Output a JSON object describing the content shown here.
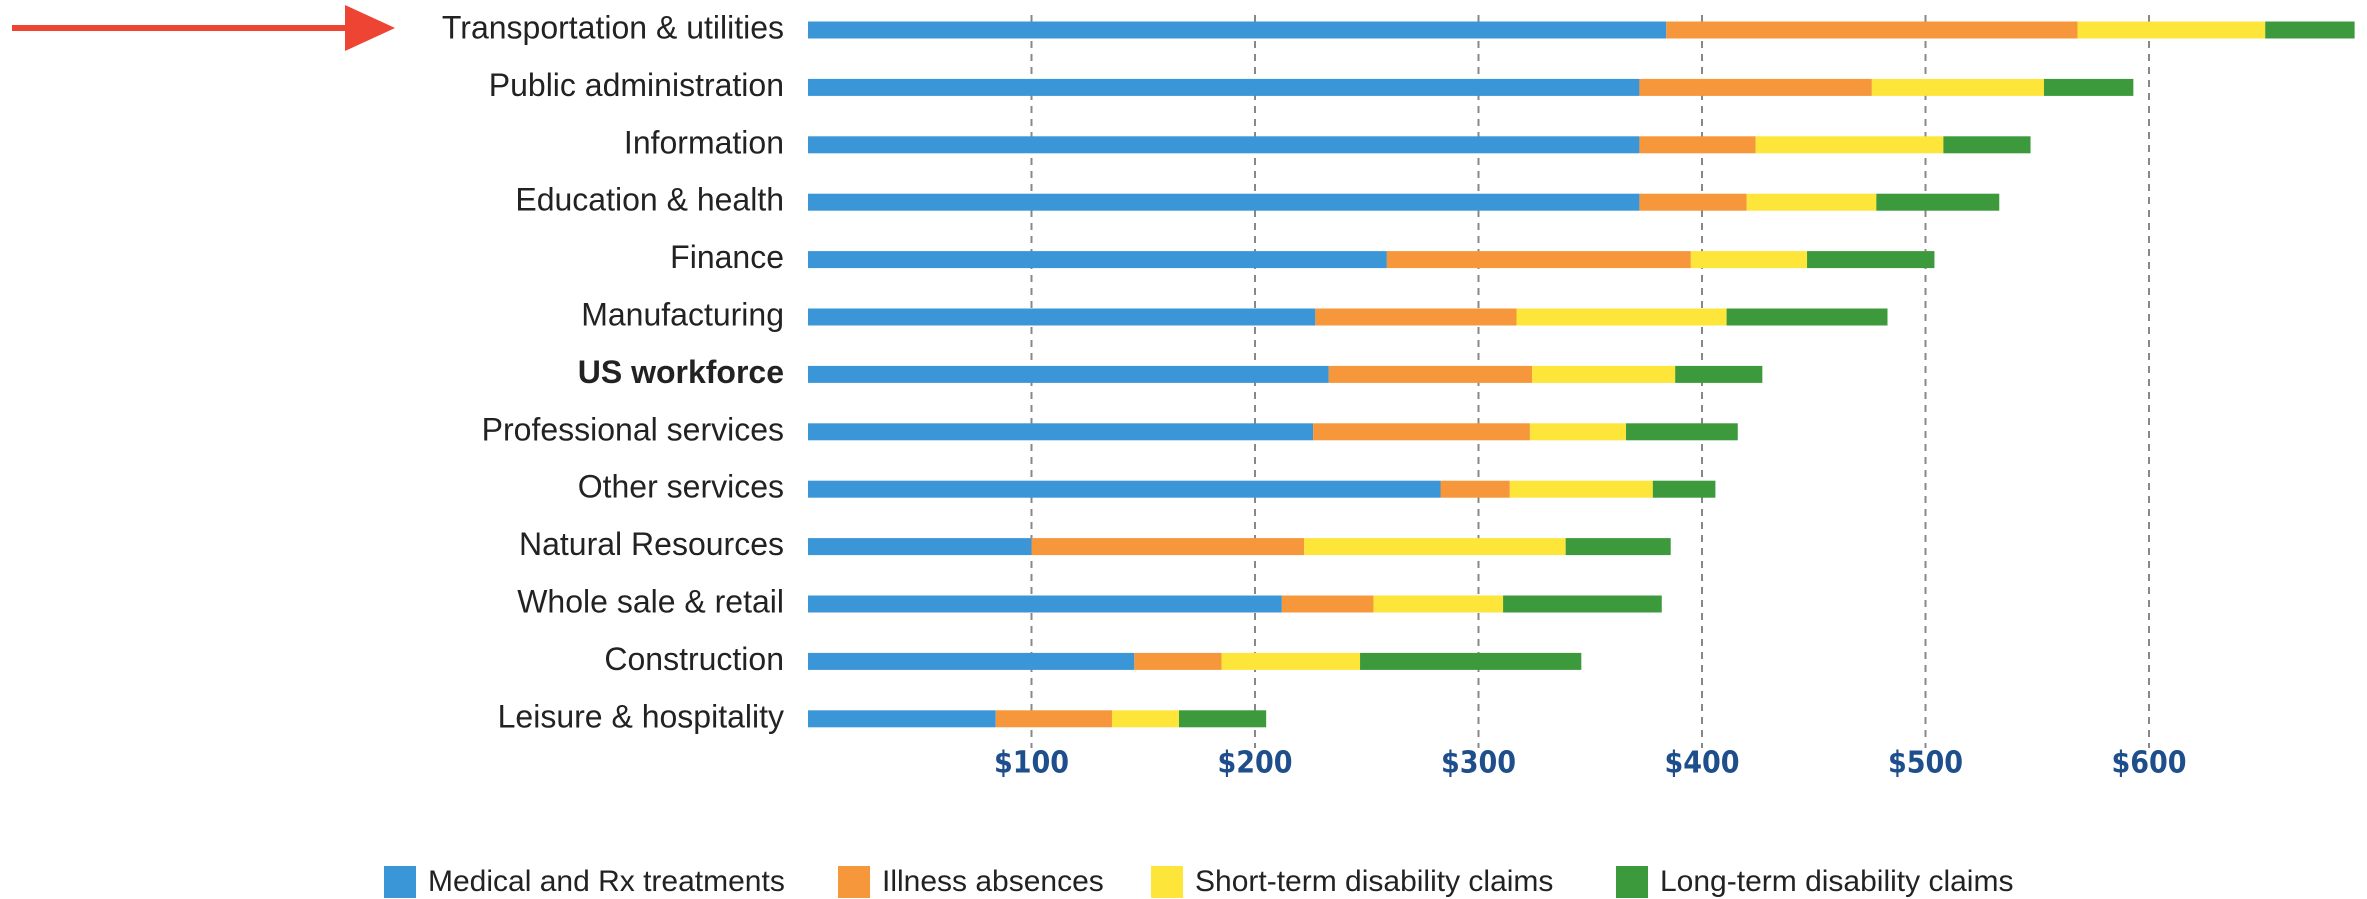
{
  "chart_data": {
    "type": "stacked_barh",
    "categories": [
      "Transportation & utilities",
      "Public administration",
      "Information",
      "Education & health",
      "Finance",
      "Manufacturing",
      "US workforce",
      "Professional services",
      "Other services",
      "Natural Resources",
      "Whole sale & retail",
      "Construction",
      "Leisure & hospitality"
    ],
    "bold_category": 6,
    "series": [
      {
        "name": "Medical and Rx treatments",
        "color": "#3a96d6",
        "values": [
          384,
          372,
          372,
          372,
          259,
          227,
          233,
          226,
          283,
          100,
          212,
          146,
          84
        ]
      },
      {
        "name": "Illness absences",
        "color": "#f5973a",
        "values": [
          184,
          104,
          52,
          48,
          136,
          90,
          91,
          97,
          31,
          122,
          41,
          39,
          52
        ]
      },
      {
        "name": "Short-term disability claims",
        "color": "#fde53a",
        "values": [
          84,
          77,
          84,
          58,
          52,
          94,
          64,
          43,
          64,
          117,
          58,
          62,
          30
        ]
      },
      {
        "name": "Long-term disability claims",
        "color": "#3c9a3c",
        "values": [
          40,
          40,
          39,
          55,
          57,
          72,
          39,
          50,
          28,
          47,
          71,
          99,
          39
        ]
      }
    ],
    "xlim": [
      0,
      700
    ],
    "xticks": [
      {
        "value": 100,
        "label": "$100"
      },
      {
        "value": 200,
        "label": "$200"
      },
      {
        "value": 300,
        "label": "$300"
      },
      {
        "value": 400,
        "label": "$400"
      },
      {
        "value": 500,
        "label": "$500"
      },
      {
        "value": 600,
        "label": "$600"
      }
    ],
    "grid": true
  }
}
